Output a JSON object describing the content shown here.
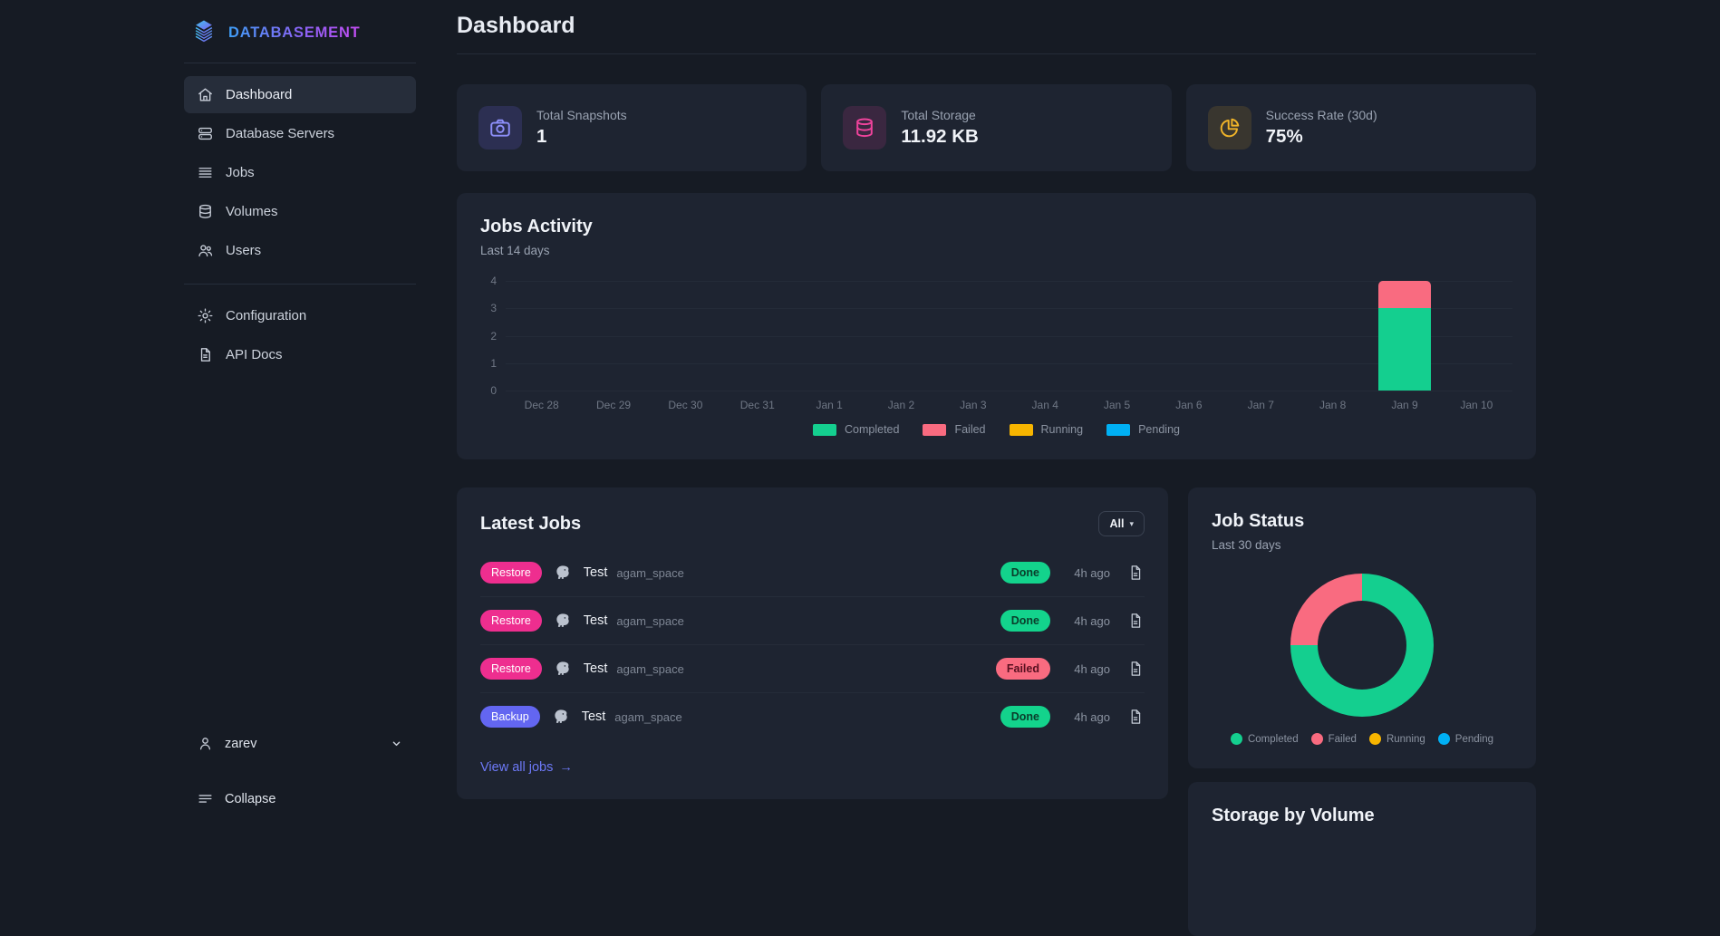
{
  "brand": {
    "name": "DATABASEMENT"
  },
  "header": {
    "title": "Dashboard"
  },
  "sidebar": {
    "primary": [
      {
        "label": "Dashboard",
        "icon": "home-icon",
        "active": true
      },
      {
        "label": "Database Servers",
        "icon": "servers-icon",
        "active": false
      },
      {
        "label": "Jobs",
        "icon": "jobs-list-icon",
        "active": false
      },
      {
        "label": "Volumes",
        "icon": "volumes-icon",
        "active": false
      },
      {
        "label": "Users",
        "icon": "users-icon",
        "active": false
      }
    ],
    "secondary": [
      {
        "label": "Configuration",
        "icon": "gear-icon",
        "active": false
      },
      {
        "label": "API Docs",
        "icon": "api-docs-icon",
        "active": false
      }
    ],
    "user": {
      "name": "zarev"
    },
    "collapse_label": "Collapse"
  },
  "stats": [
    {
      "label": "Total Snapshots",
      "value": "1",
      "icon": "camera-icon",
      "color": "#8d8ff9",
      "bg": "rgba(120,108,255,0.16)"
    },
    {
      "label": "Total Storage",
      "value": "11.92 KB",
      "icon": "storage-db-icon",
      "color": "#f0439c",
      "bg": "rgba(236,61,156,0.14)"
    },
    {
      "label": "Success Rate (30d)",
      "value": "75%",
      "icon": "pie-chart-icon",
      "color": "#f0b429",
      "bg": "rgba(240,180,41,0.13)"
    }
  ],
  "jobs_activity": {
    "title": "Jobs Activity",
    "subtitle": "Last 14 days"
  },
  "latest_jobs": {
    "title": "Latest Jobs",
    "filter_label": "All",
    "view_all_label": "View all jobs",
    "rows": [
      {
        "type": "Restore",
        "name": "Test",
        "volume": "agam_space",
        "status": "Done",
        "time": "4h ago"
      },
      {
        "type": "Restore",
        "name": "Test",
        "volume": "agam_space",
        "status": "Done",
        "time": "4h ago"
      },
      {
        "type": "Restore",
        "name": "Test",
        "volume": "agam_space",
        "status": "Failed",
        "time": "4h ago"
      },
      {
        "type": "Backup",
        "name": "Test",
        "volume": "agam_space",
        "status": "Done",
        "time": "4h ago"
      }
    ]
  },
  "job_status": {
    "title": "Job Status",
    "subtitle": "Last 30 days"
  },
  "storage_by_volume": {
    "title": "Storage by Volume"
  },
  "colors": {
    "completed": "#14cf8f",
    "failed": "#f96b80",
    "running": "#f7b500",
    "pending": "#00b0f4",
    "restore_badge": "#ee2e8f",
    "backup_badge": "#6366f1",
    "done_pill": "#13d38c",
    "failed_pill": "#f96b80",
    "link": "#6d79f7"
  },
  "chart_data": [
    {
      "id": "jobs-activity",
      "type": "bar",
      "stacked": true,
      "title": "Jobs Activity",
      "subtitle": "Last 14 days",
      "categories": [
        "Dec 28",
        "Dec 29",
        "Dec 30",
        "Dec 31",
        "Jan 1",
        "Jan 2",
        "Jan 3",
        "Jan 4",
        "Jan 5",
        "Jan 6",
        "Jan 7",
        "Jan 8",
        "Jan 9",
        "Jan 10"
      ],
      "series": [
        {
          "name": "Completed",
          "color": "#14cf8f",
          "values": [
            0,
            0,
            0,
            0,
            0,
            0,
            0,
            0,
            0,
            0,
            0,
            0,
            3,
            0
          ]
        },
        {
          "name": "Failed",
          "color": "#f96b80",
          "values": [
            0,
            0,
            0,
            0,
            0,
            0,
            0,
            0,
            0,
            0,
            0,
            0,
            1,
            0
          ]
        },
        {
          "name": "Running",
          "color": "#f7b500",
          "values": [
            0,
            0,
            0,
            0,
            0,
            0,
            0,
            0,
            0,
            0,
            0,
            0,
            0,
            0
          ]
        },
        {
          "name": "Pending",
          "color": "#00b0f4",
          "values": [
            0,
            0,
            0,
            0,
            0,
            0,
            0,
            0,
            0,
            0,
            0,
            0,
            0,
            0
          ]
        }
      ],
      "ylim": [
        0,
        4
      ],
      "yticks": [
        0,
        1,
        2,
        3,
        4
      ],
      "grid": true,
      "legend_position": "bottom"
    },
    {
      "id": "job-status",
      "type": "pie",
      "donut": true,
      "title": "Job Status",
      "subtitle": "Last 30 days",
      "labels": [
        "Completed",
        "Failed",
        "Running",
        "Pending"
      ],
      "values": [
        3,
        1,
        0,
        0
      ],
      "percents": [
        75,
        25,
        0,
        0
      ],
      "colors": [
        "#14cf8f",
        "#f96b80",
        "#f7b500",
        "#00b0f4"
      ],
      "legend_position": "bottom"
    }
  ]
}
